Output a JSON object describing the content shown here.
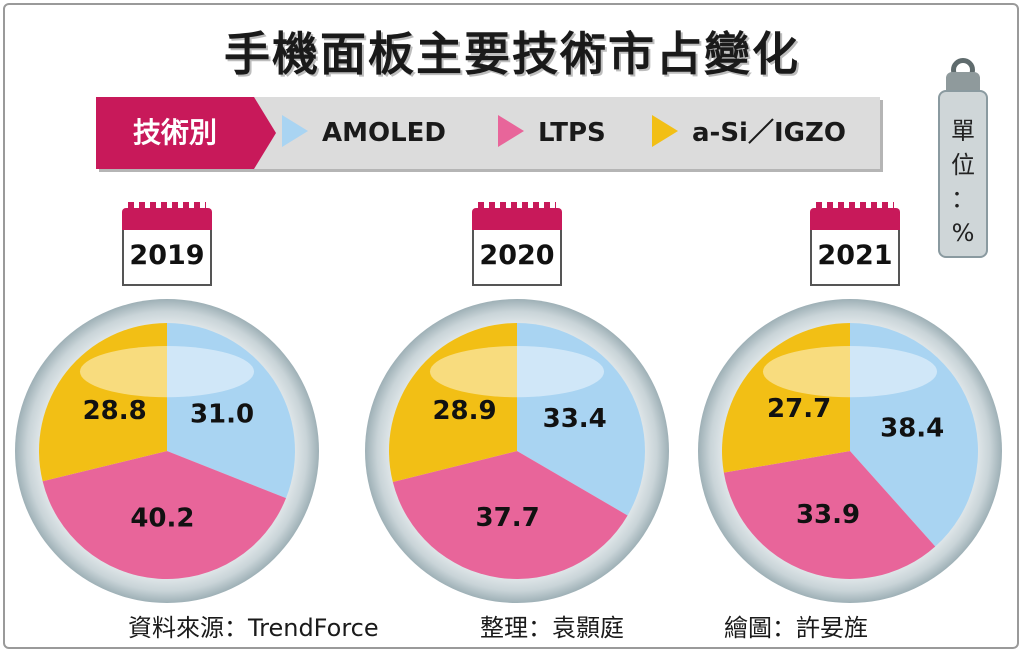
{
  "title": "手機面板主要技術市占變化",
  "legend": {
    "header": "技術別",
    "items": [
      {
        "label": "AMOLED",
        "color": "#a9d4f2"
      },
      {
        "label": "LTPS",
        "color": "#e8659a"
      },
      {
        "label": "a-Si／IGZO",
        "color": "#f2bf15"
      }
    ]
  },
  "unit": {
    "line1": "單",
    "line2": "位",
    "line3": "：",
    "line4": "%"
  },
  "chart_data": [
    {
      "type": "pie",
      "title": "2019",
      "series": [
        {
          "name": "AMOLED",
          "value": 31.0
        },
        {
          "name": "LTPS",
          "value": 40.2
        },
        {
          "name": "a-Si／IGZO",
          "value": 28.8
        }
      ]
    },
    {
      "type": "pie",
      "title": "2020",
      "series": [
        {
          "name": "AMOLED",
          "value": 33.4
        },
        {
          "name": "LTPS",
          "value": 37.7
        },
        {
          "name": "a-Si／IGZO",
          "value": 28.9
        }
      ]
    },
    {
      "type": "pie",
      "title": "2021",
      "series": [
        {
          "name": "AMOLED",
          "value": 38.4
        },
        {
          "name": "LTPS",
          "value": 33.9
        },
        {
          "name": "a-Si／IGZO",
          "value": 27.7
        }
      ]
    }
  ],
  "footer": {
    "source": "資料來源：TrendForce",
    "editor": "整理：袁顥庭",
    "illustrator": "繪圖：許妟旌"
  }
}
